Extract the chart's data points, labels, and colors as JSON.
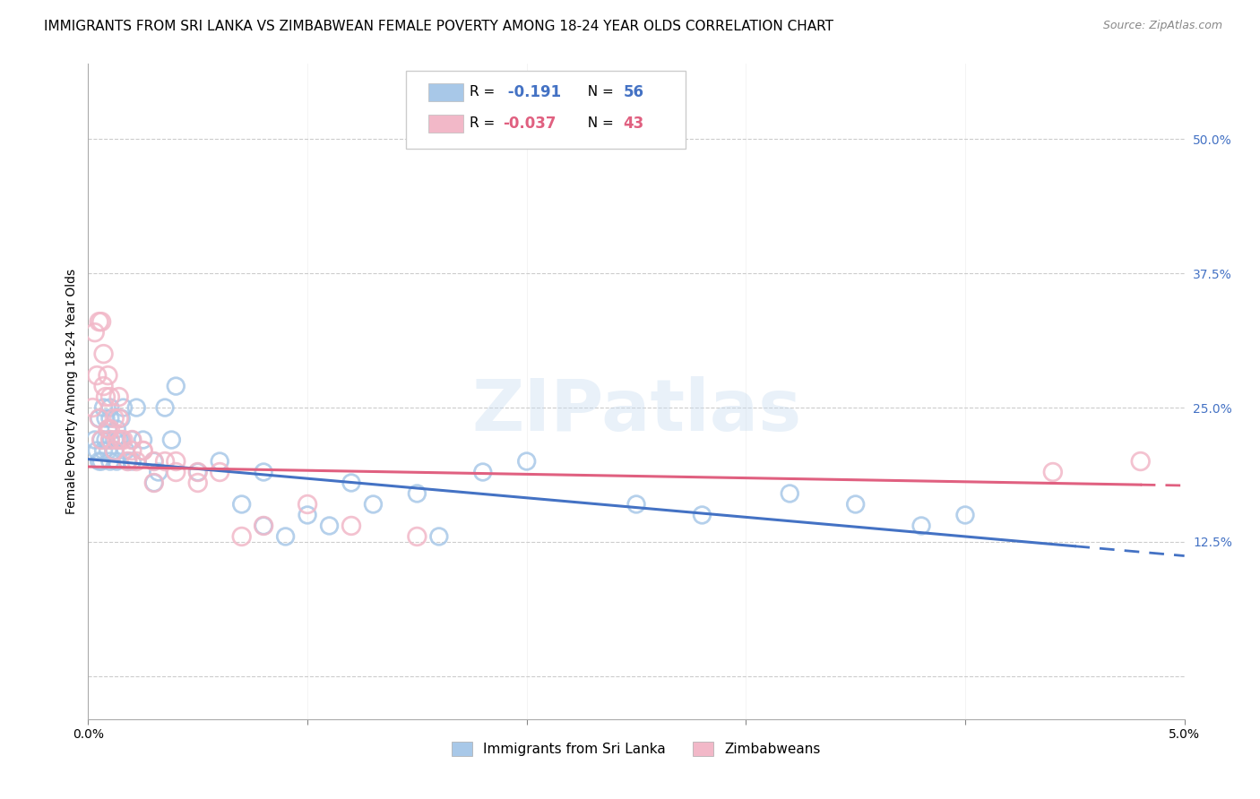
{
  "title": "IMMIGRANTS FROM SRI LANKA VS ZIMBABWEAN FEMALE POVERTY AMONG 18-24 YEAR OLDS CORRELATION CHART",
  "source": "Source: ZipAtlas.com",
  "ylabel": "Female Poverty Among 18-24 Year Olds",
  "right_yticks": [
    0.0,
    0.125,
    0.25,
    0.375,
    0.5
  ],
  "right_yticklabels": [
    "",
    "12.5%",
    "25.0%",
    "37.5%",
    "50.0%"
  ],
  "legend_blue_r": "-0.191",
  "legend_blue_n": "56",
  "legend_pink_r": "-0.037",
  "legend_pink_n": "43",
  "legend_label1": "Immigrants from Sri Lanka",
  "legend_label2": "Zimbabweans",
  "blue_color": "#A8C8E8",
  "pink_color": "#F2B8C8",
  "blue_line_color": "#4472C4",
  "pink_line_color": "#E06080",
  "watermark": "ZIPatlas",
  "sri_lanka_x": [
    0.0003,
    0.0004,
    0.0005,
    0.0005,
    0.0006,
    0.0006,
    0.0007,
    0.0007,
    0.0008,
    0.0008,
    0.0009,
    0.0009,
    0.001,
    0.001,
    0.001,
    0.001,
    0.0012,
    0.0012,
    0.0013,
    0.0013,
    0.0014,
    0.0015,
    0.0015,
    0.0016,
    0.0017,
    0.0018,
    0.002,
    0.002,
    0.0022,
    0.0025,
    0.003,
    0.003,
    0.0032,
    0.0035,
    0.0038,
    0.004,
    0.005,
    0.006,
    0.007,
    0.008,
    0.012,
    0.015,
    0.018,
    0.02,
    0.025,
    0.028,
    0.032,
    0.035,
    0.038,
    0.04,
    0.008,
    0.009,
    0.01,
    0.011,
    0.013,
    0.016
  ],
  "sri_lanka_y": [
    0.22,
    0.21,
    0.24,
    0.2,
    0.22,
    0.2,
    0.21,
    0.25,
    0.22,
    0.24,
    0.23,
    0.21,
    0.25,
    0.22,
    0.2,
    0.24,
    0.22,
    0.21,
    0.23,
    0.2,
    0.22,
    0.24,
    0.22,
    0.25,
    0.21,
    0.2,
    0.22,
    0.2,
    0.25,
    0.22,
    0.2,
    0.18,
    0.19,
    0.25,
    0.22,
    0.27,
    0.19,
    0.2,
    0.16,
    0.19,
    0.18,
    0.17,
    0.19,
    0.2,
    0.16,
    0.15,
    0.17,
    0.16,
    0.14,
    0.15,
    0.14,
    0.13,
    0.15,
    0.14,
    0.16,
    0.13
  ],
  "zimbabwe_x": [
    0.0002,
    0.0003,
    0.0004,
    0.0005,
    0.0006,
    0.0007,
    0.0008,
    0.0009,
    0.001,
    0.001,
    0.0012,
    0.0013,
    0.0014,
    0.0015,
    0.0016,
    0.0018,
    0.002,
    0.0022,
    0.0025,
    0.003,
    0.0035,
    0.004,
    0.005,
    0.006,
    0.0005,
    0.0006,
    0.0007,
    0.0009,
    0.001,
    0.0012,
    0.0014,
    0.002,
    0.0025,
    0.003,
    0.004,
    0.005,
    0.007,
    0.008,
    0.01,
    0.012,
    0.015,
    0.048,
    0.044
  ],
  "zimbabwe_y": [
    0.25,
    0.32,
    0.28,
    0.24,
    0.22,
    0.3,
    0.26,
    0.23,
    0.22,
    0.23,
    0.21,
    0.22,
    0.24,
    0.22,
    0.22,
    0.2,
    0.21,
    0.2,
    0.21,
    0.2,
    0.2,
    0.2,
    0.19,
    0.19,
    0.33,
    0.33,
    0.27,
    0.28,
    0.26,
    0.24,
    0.26,
    0.22,
    0.21,
    0.18,
    0.19,
    0.18,
    0.13,
    0.14,
    0.16,
    0.14,
    0.13,
    0.2,
    0.19
  ],
  "xlim": [
    0.0,
    0.05
  ],
  "ylim": [
    -0.04,
    0.57
  ],
  "background_color": "#FFFFFF",
  "grid_color": "#CCCCCC",
  "title_fontsize": 11,
  "axis_fontsize": 10,
  "tick_color_right": "#4472C4",
  "blue_line_intercept": 0.202,
  "blue_line_slope": -1.8,
  "pink_line_intercept": 0.195,
  "pink_line_slope": -0.35
}
